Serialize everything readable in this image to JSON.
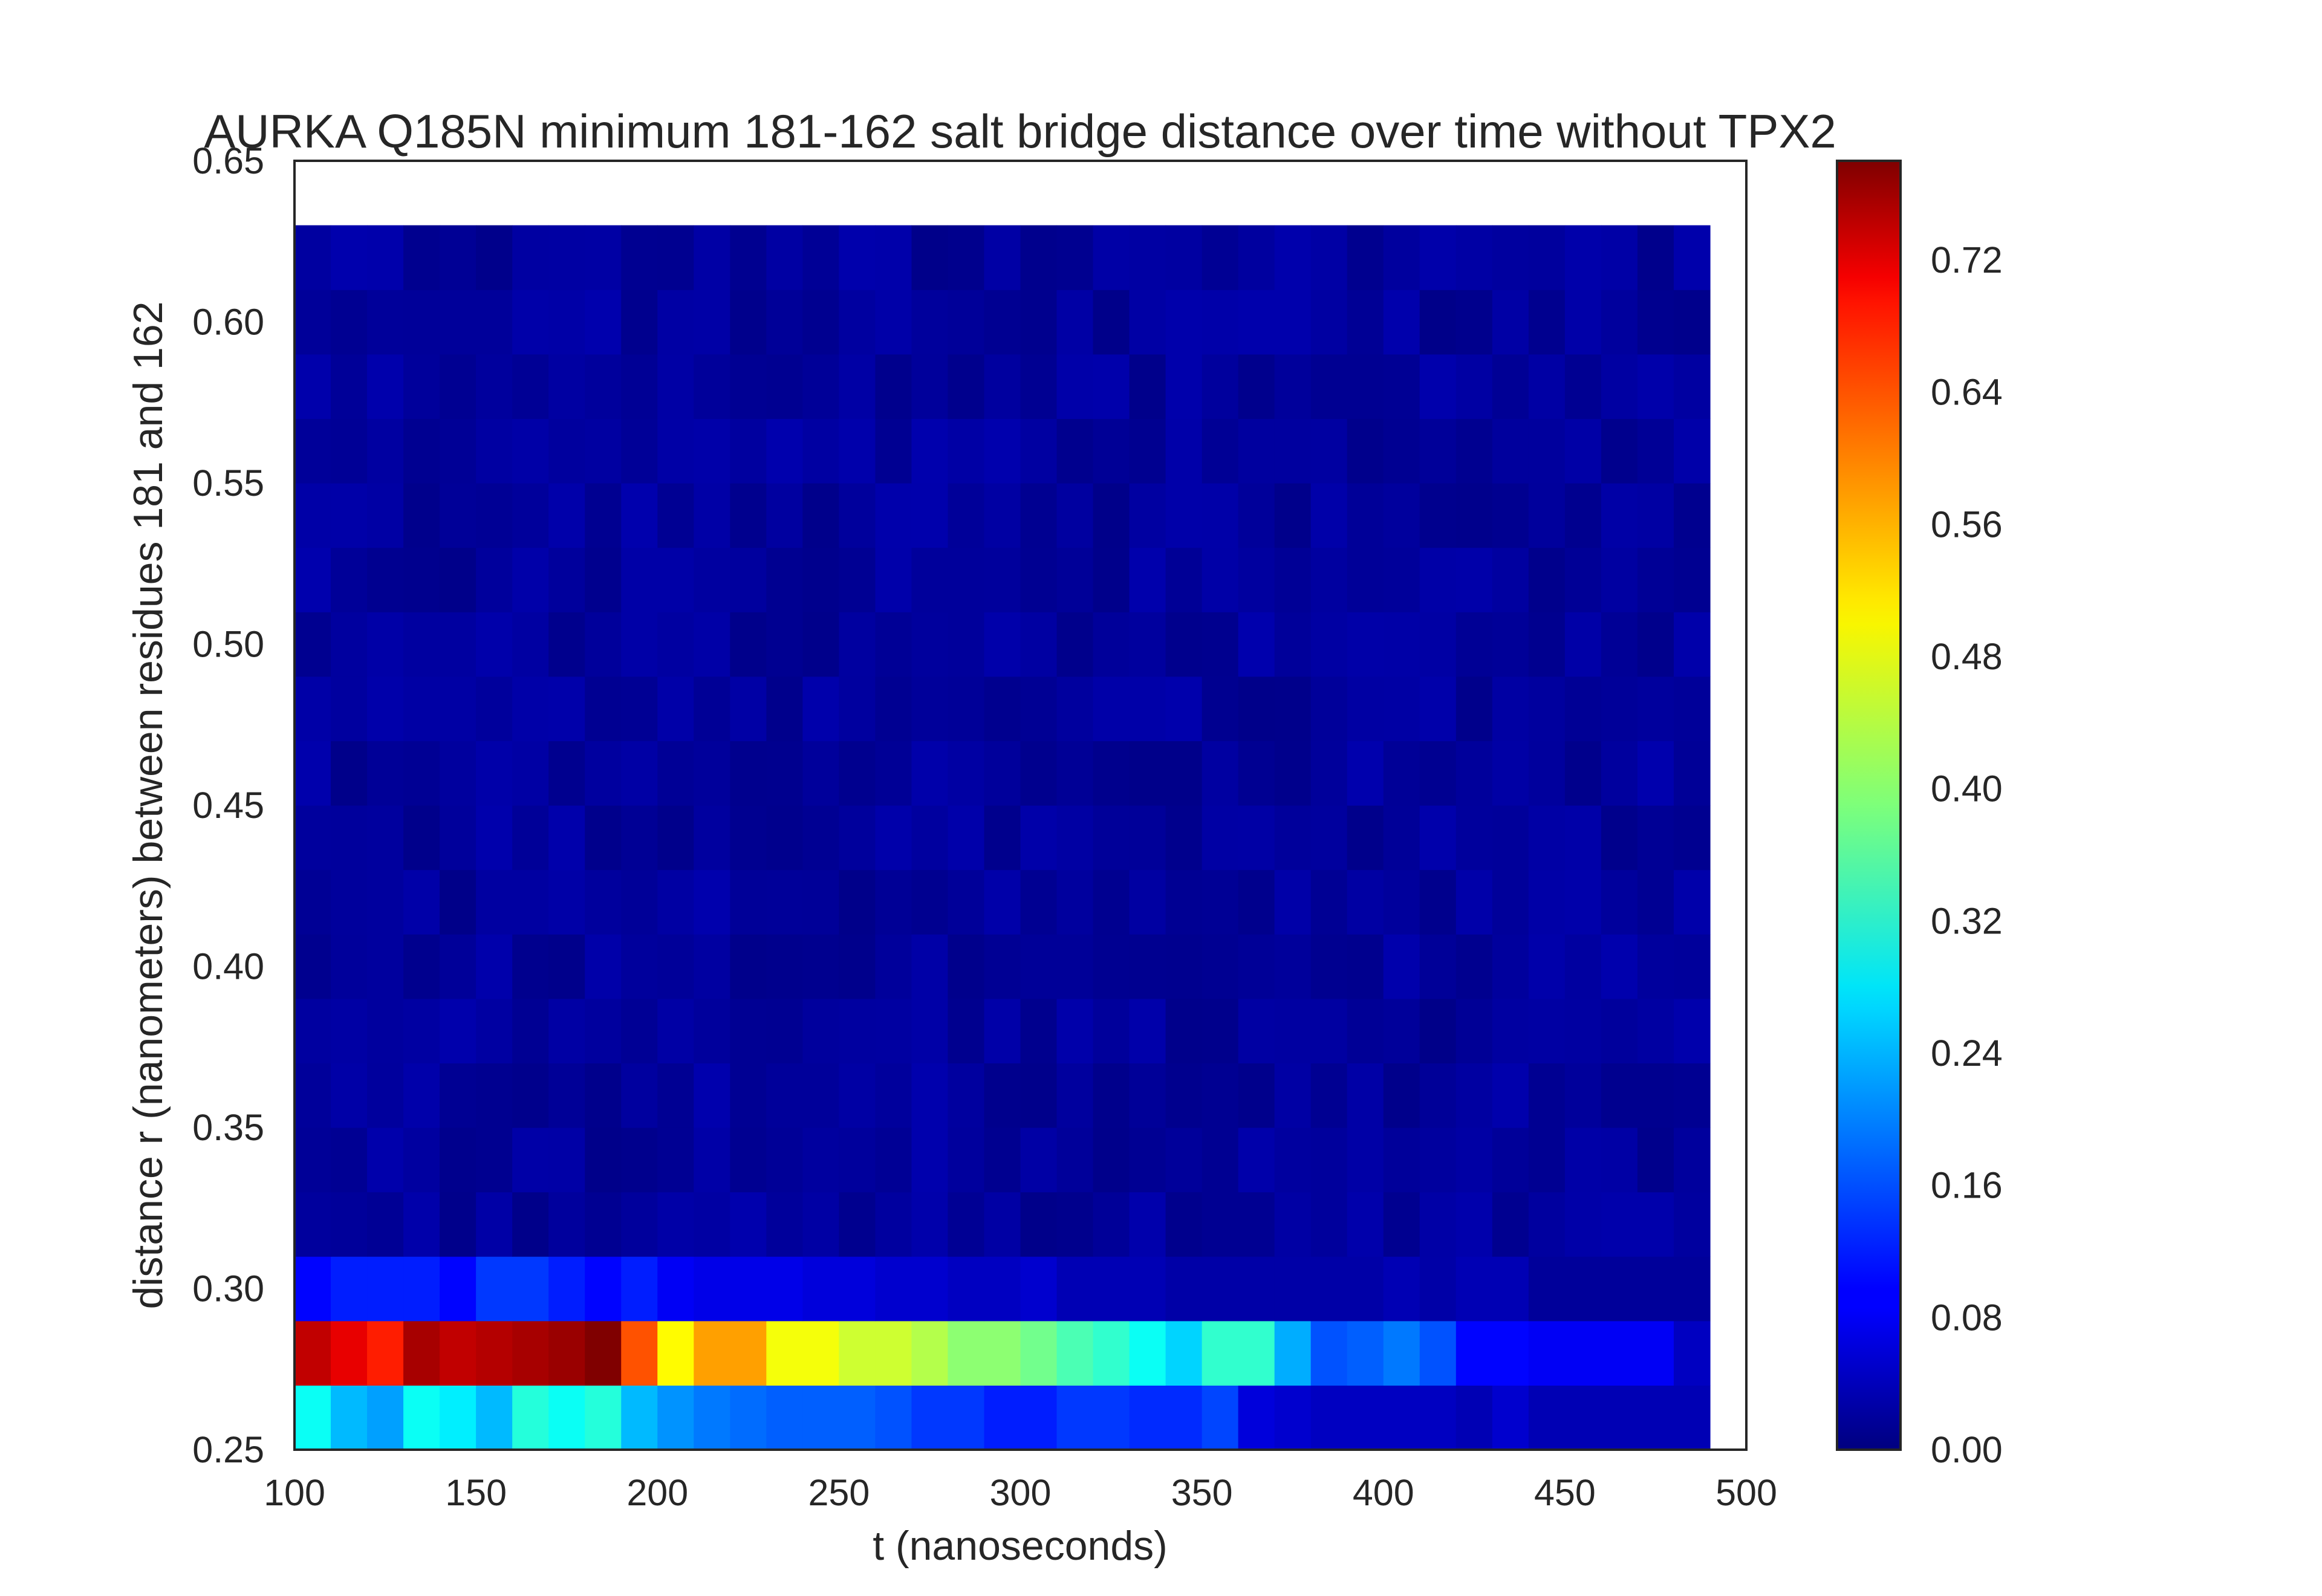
{
  "chart_data": {
    "type": "heatmap",
    "title": "AURKA Q185N minimum 181-162 salt bridge distance over time without TPX2",
    "xlabel": "t (nanoseconds)",
    "ylabel": "distance r (nanometers) between residues 181 and 162",
    "xlim": [
      100,
      500
    ],
    "ylim": [
      0.25,
      0.65
    ],
    "x_ticks": [
      "100",
      "150",
      "200",
      "250",
      "300",
      "350",
      "400",
      "450",
      "500"
    ],
    "y_ticks": [
      "0.25",
      "0.30",
      "0.35",
      "0.40",
      "0.45",
      "0.50",
      "0.55",
      "0.60",
      "0.65"
    ],
    "colorbar": {
      "colormap": "jet",
      "range": [
        0.0,
        0.78
      ],
      "ticks": [
        "0.00",
        "0.08",
        "0.16",
        "0.24",
        "0.32",
        "0.40",
        "0.48",
        "0.56",
        "0.64",
        "0.72"
      ]
    },
    "x_edges": [
      100,
      490
    ],
    "x_bin_width": 10,
    "y_edges": [
      0.25,
      0.27,
      0.29,
      0.31,
      0.33,
      0.35,
      0.37,
      0.39,
      0.41,
      0.43,
      0.45,
      0.47,
      0.49,
      0.51,
      0.53,
      0.55,
      0.57,
      0.59,
      0.61,
      0.63
    ],
    "rows": [
      [
        0.3,
        0.24,
        0.22,
        0.3,
        0.28,
        0.24,
        0.32,
        0.3,
        0.32,
        0.24,
        0.21,
        0.19,
        0.18,
        0.17,
        0.17,
        0.17,
        0.16,
        0.14,
        0.14,
        0.12,
        0.12,
        0.14,
        0.14,
        0.13,
        0.13,
        0.15,
        0.07,
        0.06,
        0.05,
        0.05,
        0.05,
        0.05,
        0.04,
        0.06,
        0.04,
        0.04,
        0.04,
        0.04,
        0.04
      ],
      [
        0.73,
        0.7,
        0.66,
        0.75,
        0.73,
        0.74,
        0.75,
        0.76,
        0.78,
        0.62,
        0.49,
        0.56,
        0.56,
        0.48,
        0.48,
        0.45,
        0.45,
        0.43,
        0.4,
        0.4,
        0.38,
        0.35,
        0.33,
        0.3,
        0.26,
        0.33,
        0.33,
        0.23,
        0.16,
        0.17,
        0.19,
        0.16,
        0.1,
        0.1,
        0.09,
        0.09,
        0.09,
        0.09,
        0.05
      ],
      [
        0.1,
        0.12,
        0.12,
        0.12,
        0.1,
        0.14,
        0.14,
        0.12,
        0.1,
        0.12,
        0.09,
        0.08,
        0.08,
        0.08,
        0.07,
        0.07,
        0.06,
        0.06,
        0.05,
        0.05,
        0.06,
        0.04,
        0.04,
        0.04,
        0.03,
        0.03,
        0.03,
        0.03,
        0.03,
        0.03,
        0.04,
        0.03,
        0.04,
        0.04,
        0.02,
        0.02,
        0.02,
        0.02,
        0.02
      ]
    ],
    "upper_field": {
      "min": 0.0,
      "max": 0.05,
      "notes": "Rows above 0.31 are uniformly dark navy (~0.00-0.05), slightly brighter near t=200 and t=400."
    }
  }
}
